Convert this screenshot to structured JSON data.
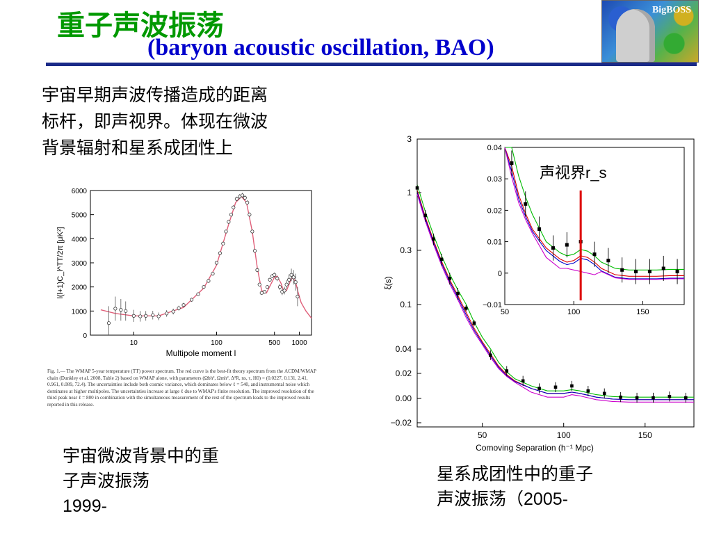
{
  "header": {
    "title_cn": "重子声波振荡",
    "title_en": "(baryon acoustic oscillation, BAO)",
    "logo_label": "BigBOSS"
  },
  "intro_text": [
    "宇宙早期声波传播造成的距离",
    "标杆，即声视界。体现在微波",
    "背景辐射和星系成团性上"
  ],
  "cmb_caption": {
    "lines": [
      "宇宙微波背景中的重",
      "子声波振荡"
    ],
    "year": "1999-"
  },
  "bao_caption": {
    "text": "星系成团性中的重子",
    "text2": "声波振荡（",
    "year": "2005-"
  },
  "wmap_caption": "Fig. 1.— The WMAP 5-year temperature (TT) power spectrum. The red curve is the best-fit theory spectrum from the ΛCDM/WMAP chain (Dunkley et al. 2008, Table 2) based on WMAP alone, with parameters (Ωbh², Ωmh², Δ²R, ns, τ, H0) = (0.0227, 0.131, 2.41, 0.961, 0.089, 72.4). The uncertainties include both cosmic variance, which dominates below ℓ = 540, and instrumental noise which dominates at higher multipoles. The uncertainties increase at large ℓ due to WMAP's finite resolution. The improved resolution of the third peak near ℓ = 800 in combination with the simultaneous measurement of the rest of the spectrum leads to the improved results reported in this release.",
  "colors": {
    "title_cn": "#009900",
    "title_en": "#0000cc",
    "rule": "#1a2a88",
    "theory": "#e0607a",
    "sound_horizon": "#dd0000"
  },
  "chart_data": [
    {
      "type": "scatter",
      "xlabel": "Multipole moment l",
      "ylabel": "l(l+1)C_l^TT/2π [μK²]",
      "xscale": "log",
      "xlim": [
        3,
        1400
      ],
      "ylim": [
        0,
        6000
      ],
      "xticks": [
        10,
        100,
        500,
        1000
      ],
      "yticks": [
        0,
        1000,
        2000,
        3000,
        4000,
        5000,
        6000
      ],
      "series": [
        {
          "kind": "points",
          "x": [
            5,
            6,
            7,
            8,
            10,
            12,
            14,
            17,
            20,
            25,
            30,
            35,
            40,
            50,
            60,
            70,
            80,
            90,
            100,
            110,
            120,
            130,
            140,
            150,
            160,
            175,
            190,
            205,
            220,
            235,
            250,
            270,
            290,
            310,
            330,
            350,
            380,
            410,
            440,
            470,
            500,
            540,
            580,
            620,
            660,
            700,
            750,
            800,
            850,
            900,
            950
          ],
          "y": [
            500,
            1100,
            1050,
            1000,
            800,
            780,
            800,
            830,
            780,
            900,
            980,
            1120,
            1250,
            1470,
            1700,
            2000,
            2250,
            2550,
            3000,
            3400,
            3800,
            4300,
            4700,
            5000,
            5300,
            5650,
            5750,
            5800,
            5700,
            5500,
            5000,
            4300,
            3500,
            2700,
            2100,
            1750,
            1800,
            2000,
            2300,
            2450,
            2500,
            2350,
            2000,
            1800,
            1850,
            2100,
            2300,
            2500,
            2400,
            2200,
            1600
          ],
          "err": [
            700,
            500,
            450,
            400,
            250,
            220,
            200,
            180,
            160,
            140,
            120,
            100,
            90,
            80,
            70,
            65,
            60,
            60,
            60,
            65,
            70,
            75,
            80,
            85,
            90,
            95,
            100,
            100,
            100,
            100,
            95,
            90,
            85,
            80,
            70,
            60,
            60,
            70,
            80,
            90,
            100,
            110,
            120,
            140,
            160,
            180,
            220,
            260,
            300,
            350,
            400
          ]
        },
        {
          "kind": "theory_curve"
        }
      ]
    },
    {
      "type": "line",
      "xlabel": "Comoving Separation (h⁻¹ Mpc)",
      "ylabel": "ξ(s)",
      "xlim": [
        10,
        180
      ],
      "yticks_labels": [
        "3",
        "1",
        "0.3",
        "0.1",
        "0.04",
        "0.02",
        "0.00",
        "−0.02"
      ],
      "xticks": [
        50,
        100,
        150
      ],
      "points": {
        "x": [
          10,
          15,
          20,
          25,
          30,
          35,
          40,
          45,
          55,
          65,
          75,
          85,
          95,
          105,
          115,
          125,
          135,
          145,
          155,
          165,
          175
        ],
        "y": [
          1.1,
          0.62,
          0.38,
          0.25,
          0.17,
          0.125,
          0.095,
          0.075,
          0.035,
          0.022,
          0.014,
          0.008,
          0.009,
          0.01,
          0.006,
          0.004,
          0.001,
          0.0005,
          0.0005,
          0.0015,
          0.0005
        ]
      },
      "curves": [
        {
          "color": "#00bb00"
        },
        {
          "color": "#dd0000"
        },
        {
          "color": "#0000cc"
        },
        {
          "color": "#cc00cc"
        }
      ],
      "inset": {
        "xlim": [
          50,
          180
        ],
        "ylim": [
          -0.01,
          0.04
        ],
        "xticks": [
          50,
          100,
          150
        ],
        "yticks": [
          "0.04",
          "0.03",
          "0.02",
          "0.01",
          "0",
          "−0.01"
        ],
        "annotation": "声视界r_s",
        "sound_horizon_x": 105
      }
    }
  ]
}
